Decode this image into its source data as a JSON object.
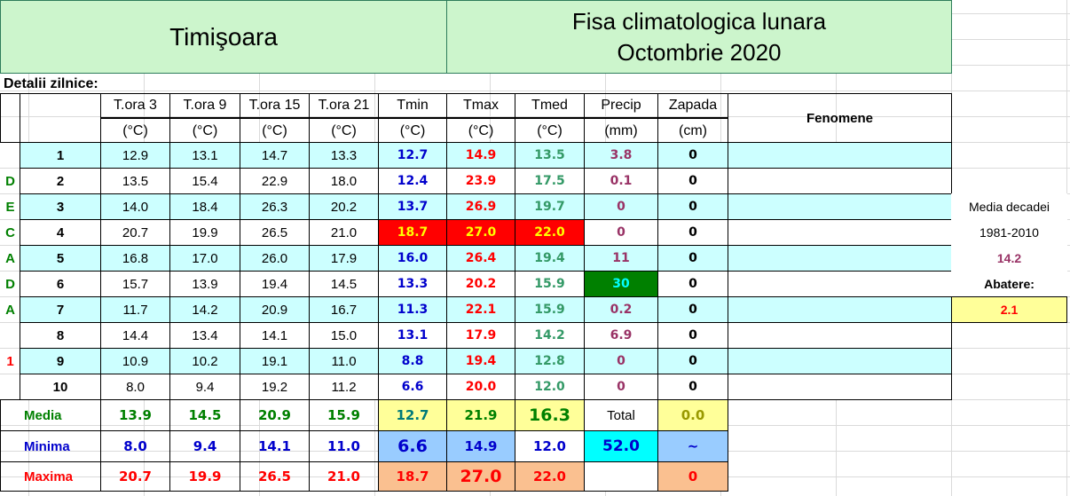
{
  "header": {
    "city": "Timişoara",
    "title": "Fisa climatologica lunara",
    "month": "Octombrie 2020"
  },
  "section_label": "Detalii zilnice:",
  "table": {
    "columns": [
      [
        "T.ora 3",
        "(°C)"
      ],
      [
        "T.ora 9",
        "(°C)"
      ],
      [
        "T.ora 15",
        "(°C)"
      ],
      [
        "T.ora 21",
        "(°C)"
      ],
      [
        "Tmin",
        "(°C)"
      ],
      [
        "Tmax",
        "(°C)"
      ],
      [
        "Tmed",
        "(°C)"
      ],
      [
        "Precip",
        "(mm)"
      ],
      [
        "Zapada",
        "(cm)"
      ]
    ],
    "fenomene": "Fenomene",
    "decade_letters": [
      null,
      "D",
      "E",
      "C",
      "A",
      "D",
      "A",
      null,
      "1",
      null
    ],
    "rows": [
      {
        "day": "1",
        "values": [
          "12.9",
          "13.1",
          "14.7",
          "13.3",
          "12.7",
          "14.9",
          "13.5",
          "3.8",
          "0"
        ]
      },
      {
        "day": "2",
        "values": [
          "13.5",
          "15.4",
          "22.9",
          "18.0",
          "12.4",
          "23.9",
          "17.5",
          "0.1",
          "0"
        ]
      },
      {
        "day": "3",
        "values": [
          "14.0",
          "18.4",
          "26.3",
          "20.2",
          "13.7",
          "26.9",
          "19.7",
          "0",
          "0"
        ]
      },
      {
        "day": "4",
        "values": [
          "20.7",
          "19.9",
          "26.5",
          "21.0",
          "18.7",
          "27.0",
          "22.0",
          "0",
          "0"
        ]
      },
      {
        "day": "5",
        "values": [
          "16.8",
          "17.0",
          "26.0",
          "17.9",
          "16.0",
          "26.4",
          "19.4",
          "11",
          "0"
        ]
      },
      {
        "day": "6",
        "values": [
          "15.7",
          "13.9",
          "19.4",
          "14.5",
          "13.3",
          "20.2",
          "15.9",
          "30",
          "0"
        ]
      },
      {
        "day": "7",
        "values": [
          "11.7",
          "14.2",
          "20.9",
          "16.7",
          "11.3",
          "22.1",
          "15.9",
          "0.2",
          "0"
        ]
      },
      {
        "day": "8",
        "values": [
          "14.4",
          "13.4",
          "14.1",
          "15.0",
          "13.1",
          "17.9",
          "14.2",
          "6.9",
          "0"
        ]
      },
      {
        "day": "9",
        "values": [
          "10.9",
          "10.2",
          "19.1",
          "11.0",
          "8.8",
          "19.4",
          "12.8",
          "0",
          "0"
        ]
      },
      {
        "day": "10",
        "values": [
          "8.0",
          "9.4",
          "19.2",
          "11.2",
          "6.6",
          "20.0",
          "12.0",
          "0",
          "0"
        ]
      }
    ],
    "summary": [
      {
        "label": "Media",
        "values": [
          "13.9",
          "14.5",
          "20.9",
          "15.9",
          "12.7",
          "21.9",
          "16.3",
          "Total",
          "0.0"
        ]
      },
      {
        "label": "Minima",
        "values": [
          "8.0",
          "9.4",
          "14.1",
          "11.0",
          "6.6",
          "14.9",
          "12.0",
          "52.0",
          "~"
        ]
      },
      {
        "label": "Maxima",
        "values": [
          "20.7",
          "19.9",
          "26.5",
          "21.0",
          "18.7",
          "27.0",
          "22.0",
          null,
          "0"
        ]
      }
    ]
  },
  "side_panel": {
    "label": "Media decadei",
    "period": "1981-2010",
    "value": "14.2",
    "deviation_label": "Abatere:",
    "deviation": "2.1"
  }
}
